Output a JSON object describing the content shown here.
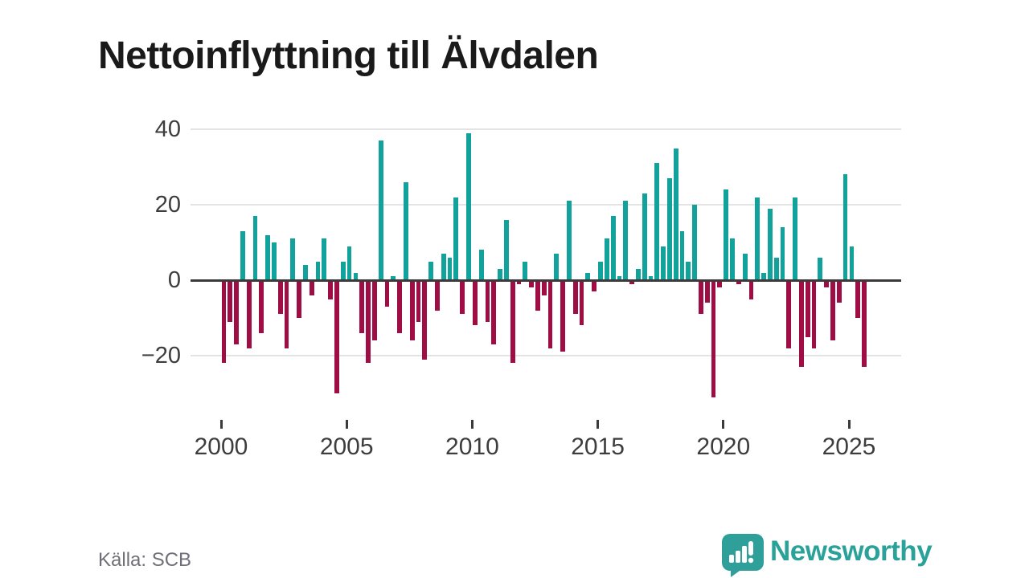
{
  "title": "Nettoinflyttning till Älvdalen",
  "source_label": "Källa: SCB",
  "logo": {
    "wordmark": "Newsworthy",
    "icon": "speech-bubble-barchart-exclamation"
  },
  "colors": {
    "positive_bar": "#10a29b",
    "negative_bar": "#a00d45",
    "gridline": "#e3e3e3",
    "zero_line": "#3a3a3a",
    "axis_text": "#3d3d3d",
    "title_text": "#1a1a1a",
    "source_text": "#6f6f78",
    "logo_teal": "#2aa29a"
  },
  "chart_data": {
    "type": "bar",
    "title": "Nettoinflyttning till Älvdalen",
    "xlabel": "",
    "ylabel": "",
    "frequency": "quarterly",
    "x_start": "2000 Q1",
    "x_end": "2025 Q3",
    "x_tick_labels": [
      "2000",
      "2005",
      "2010",
      "2015",
      "2020",
      "2025"
    ],
    "y_tick_values": [
      40,
      20,
      0,
      -20
    ],
    "ylim": [
      -32,
      42
    ],
    "grid": true,
    "legend": "none",
    "series": [
      {
        "year": 2000,
        "q": [
          -22,
          -11,
          -17,
          13
        ]
      },
      {
        "year": 2001,
        "q": [
          -18,
          17,
          -14,
          12
        ]
      },
      {
        "year": 2002,
        "q": [
          10,
          -9,
          -18,
          11
        ]
      },
      {
        "year": 2003,
        "q": [
          -10,
          4,
          -4,
          5
        ]
      },
      {
        "year": 2004,
        "q": [
          11,
          -5,
          -30,
          5
        ]
      },
      {
        "year": 2005,
        "q": [
          9,
          2,
          -14,
          -22
        ]
      },
      {
        "year": 2006,
        "q": [
          -16,
          37,
          -7,
          1
        ]
      },
      {
        "year": 2007,
        "q": [
          -14,
          26,
          -16,
          -11
        ]
      },
      {
        "year": 2008,
        "q": [
          -21,
          5,
          -8,
          7
        ]
      },
      {
        "year": 2009,
        "q": [
          6,
          22,
          -9,
          39
        ]
      },
      {
        "year": 2010,
        "q": [
          -12,
          8,
          -11,
          -17
        ]
      },
      {
        "year": 2011,
        "q": [
          3,
          16,
          -22,
          -1
        ]
      },
      {
        "year": 2012,
        "q": [
          5,
          -2,
          -8,
          -4
        ]
      },
      {
        "year": 2013,
        "q": [
          -18,
          7,
          -19,
          21
        ]
      },
      {
        "year": 2014,
        "q": [
          -9,
          -12,
          2,
          -3
        ]
      },
      {
        "year": 2015,
        "q": [
          5,
          11,
          17,
          1
        ]
      },
      {
        "year": 2016,
        "q": [
          21,
          -1,
          3,
          23
        ]
      },
      {
        "year": 2017,
        "q": [
          1,
          31,
          9,
          27
        ]
      },
      {
        "year": 2018,
        "q": [
          35,
          13,
          5,
          20
        ]
      },
      {
        "year": 2019,
        "q": [
          -9,
          -6,
          -31,
          -2
        ]
      },
      {
        "year": 2020,
        "q": [
          24,
          11,
          -1,
          7
        ]
      },
      {
        "year": 2021,
        "q": [
          -5,
          22,
          2,
          19
        ]
      },
      {
        "year": 2022,
        "q": [
          6,
          14,
          -18,
          22
        ]
      },
      {
        "year": 2023,
        "q": [
          -23,
          -15,
          -18,
          6
        ]
      },
      {
        "year": 2024,
        "q": [
          -2,
          -16,
          -6,
          28
        ]
      },
      {
        "year": 2025,
        "q": [
          9,
          -10,
          -23
        ]
      }
    ]
  }
}
